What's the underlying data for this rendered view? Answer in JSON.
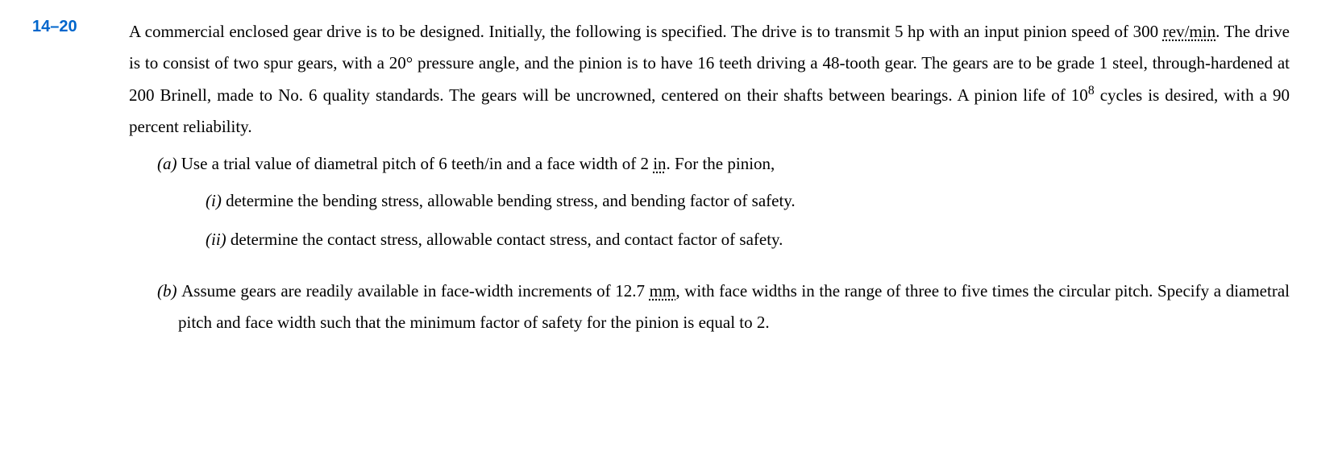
{
  "problem": {
    "number": "14–20",
    "intro_part1": "A commercial enclosed gear drive is to be designed. Initially, the following is specified. The drive is to transmit 5 hp with an input pinion speed of 300 ",
    "intro_dotted1": "rev/min",
    "intro_part2": ". The drive is to consist of two spur gears, with a 20° pressure angle, and the pinion is to have 16 teeth driving a 48-tooth gear. The gears are to be grade 1 steel, through-hardened at 200 Brinell, made to No. 6 quality standards. The gears will be uncrowned, centered on their shafts between bearings. A pinion life of 10",
    "intro_exp": "8",
    "intro_part3": " cycles is desired, with a 90 percent reliability.",
    "part_a_label": "(a) ",
    "part_a_text1": "Use a trial value of diametral pitch of 6 teeth/in and a face width of 2 ",
    "part_a_dotted": "in",
    "part_a_text2": ". For the pinion,",
    "subpart_i_label": "(i)  ",
    "subpart_i_text": "determine the bending stress, allowable bending stress, and bending factor of safety.",
    "subpart_ii_label": "(ii) ",
    "subpart_ii_text": "determine the contact stress, allowable contact stress, and contact factor of safety.",
    "part_b_label": "(b) ",
    "part_b_text1": "Assume gears are readily available in face-width increments of 12.7 ",
    "part_b_dotted": "mm",
    "part_b_text2": ", with face widths in the range of three to five times the circular pitch. Specify a diametral pitch and face width such that the minimum factor of safety for the pinion is equal to 2.",
    "colors": {
      "number_color": "#0066cc",
      "text_color": "#000000",
      "background": "#ffffff"
    },
    "typography": {
      "body_fontsize": 21,
      "number_fontsize": 20,
      "line_height": 1.85
    }
  }
}
